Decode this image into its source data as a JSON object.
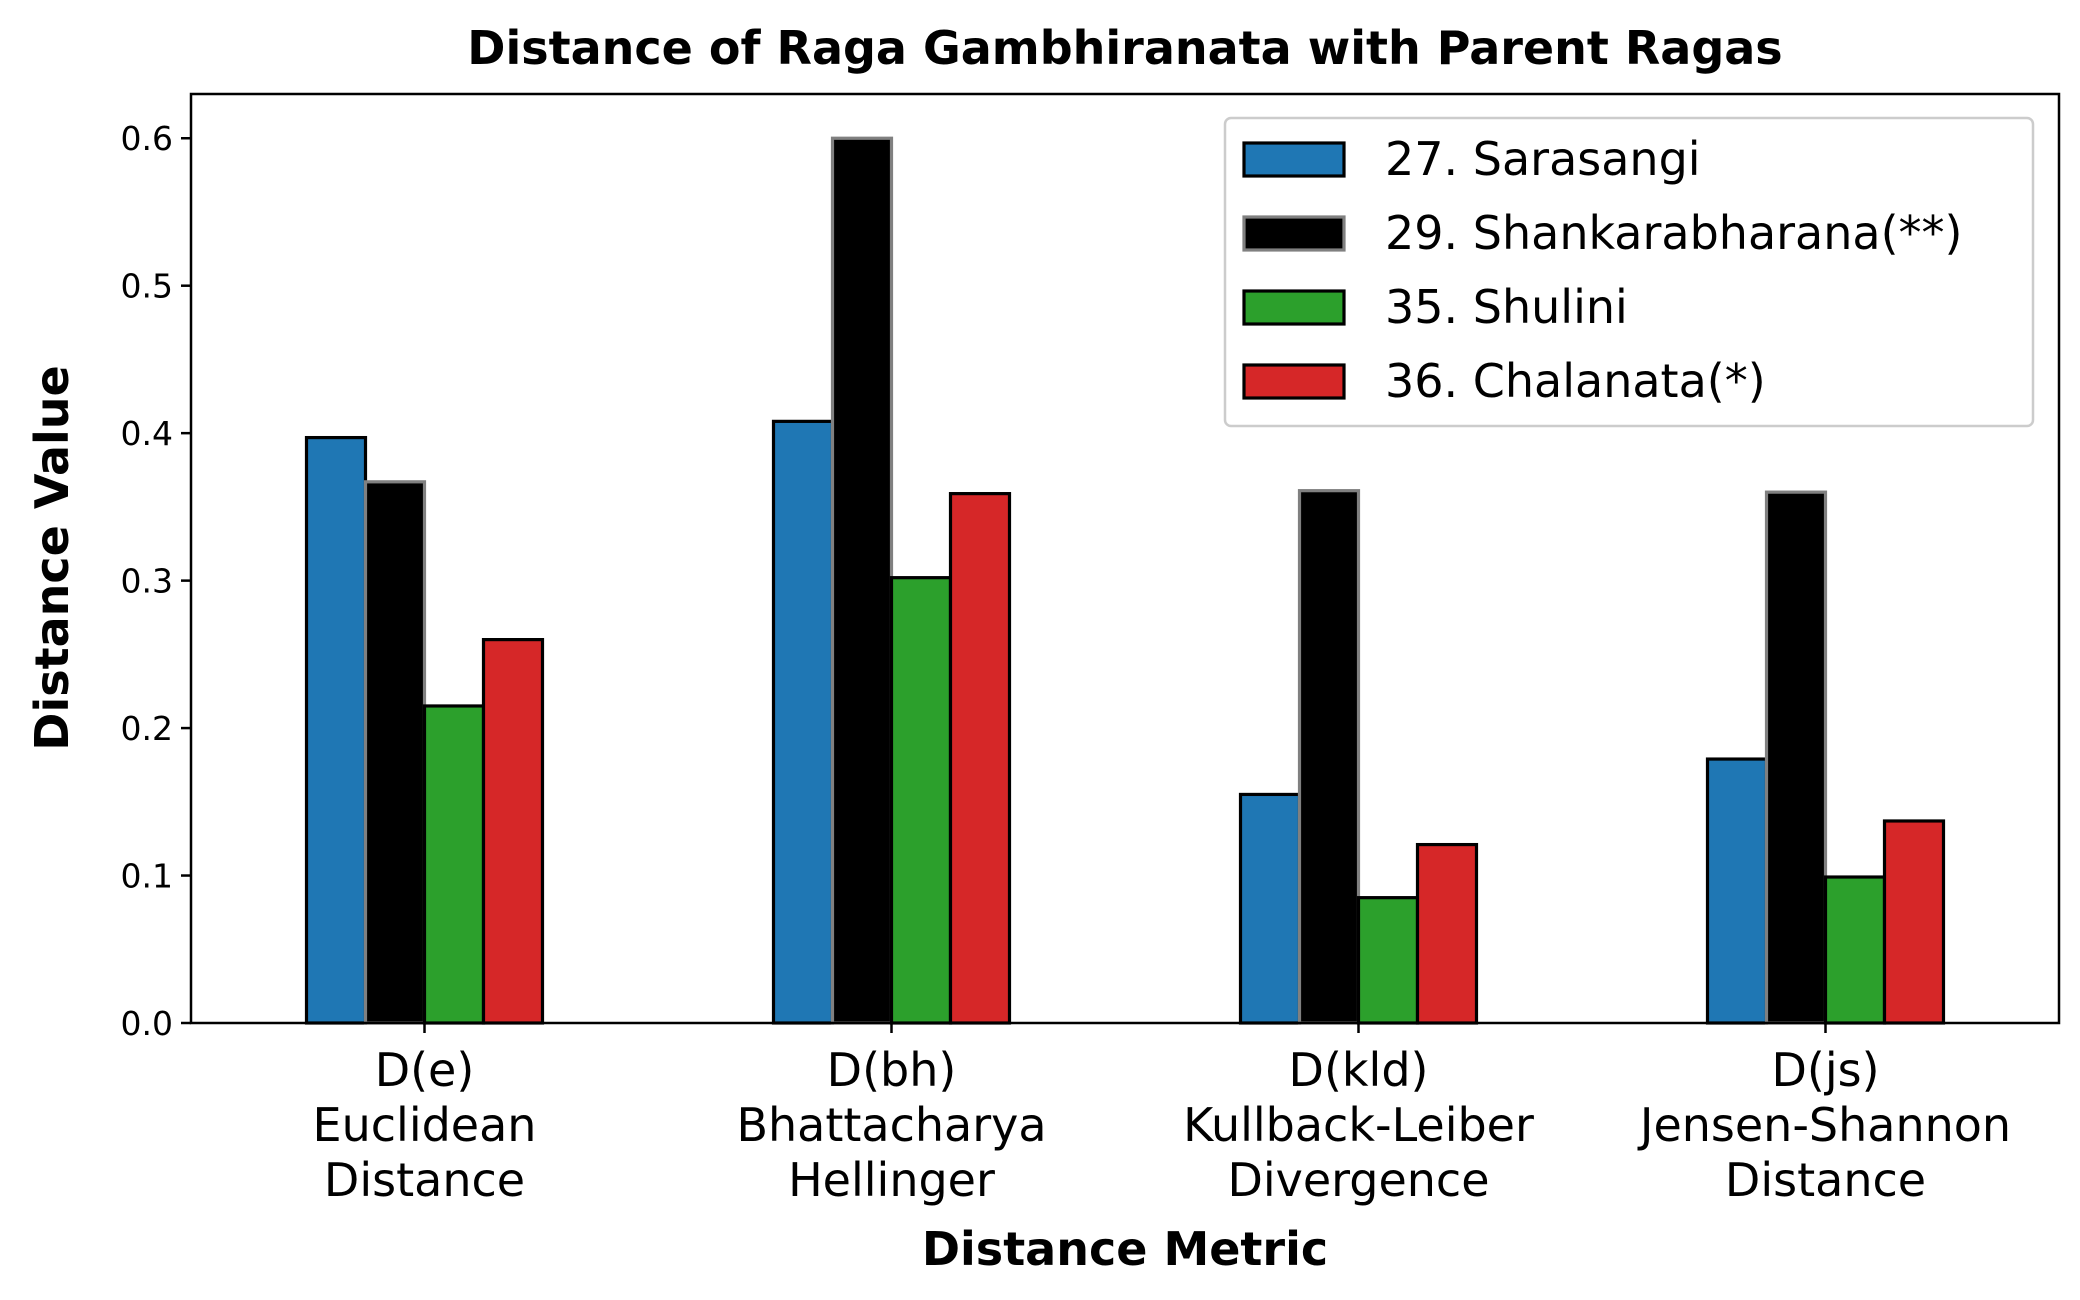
{
  "chart_data": {
    "type": "bar",
    "title": "Distance of Raga Gambhiranata with Parent Ragas",
    "xlabel": "Distance Metric",
    "ylabel": "Distance Value",
    "ylim": [
      0,
      0.63
    ],
    "yticks": [
      "0.0",
      "0.1",
      "0.2",
      "0.3",
      "0.4",
      "0.5",
      "0.6"
    ],
    "categories": [
      [
        "D(e)",
        "Euclidean",
        "Distance"
      ],
      [
        "D(bh)",
        "Bhattacharya",
        "Hellinger"
      ],
      [
        "D(kld)",
        "Kullback-Leiber",
        "Divergence"
      ],
      [
        "D(js)",
        "Jensen-Shannon",
        "Distance"
      ]
    ],
    "legend_position": "top-right",
    "grid": false,
    "series": [
      {
        "name": "27. Sarasangi",
        "color": "#1f77b4",
        "edge": "#000000",
        "values": [
          0.397,
          0.408,
          0.155,
          0.179
        ]
      },
      {
        "name": "29. Shankarabharana(**)",
        "color": "#000000",
        "edge": "#808080",
        "values": [
          0.367,
          0.6,
          0.361,
          0.36
        ]
      },
      {
        "name": "35. Shulini",
        "color": "#2ca02c",
        "edge": "#000000",
        "values": [
          0.215,
          0.302,
          0.085,
          0.099
        ]
      },
      {
        "name": "36. Chalanata(*)",
        "color": "#d62728",
        "edge": "#000000",
        "values": [
          0.26,
          0.359,
          0.121,
          0.137
        ]
      }
    ]
  }
}
